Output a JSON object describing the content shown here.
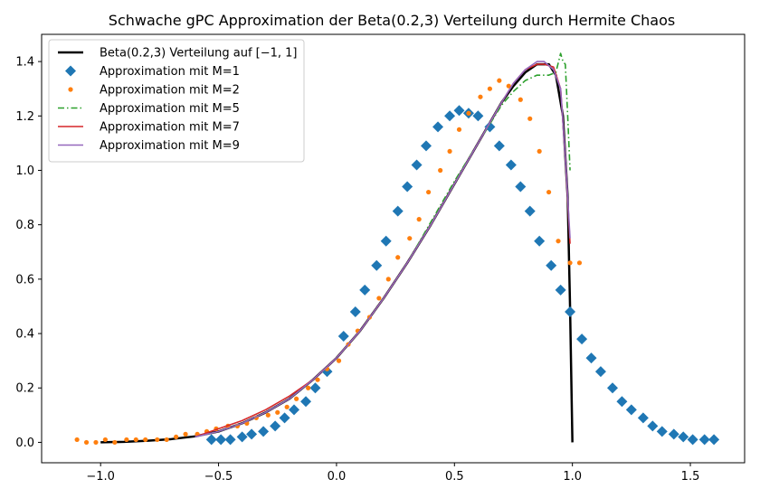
{
  "chart_data": {
    "type": "line",
    "title": "Schwache gPC Approximation der Beta(0.2,3) Verteilung durch Hermite Chaos",
    "xlim": [
      -1.25,
      1.73
    ],
    "ylim": [
      -0.075,
      1.5
    ],
    "xticks": [
      -1.0,
      -0.5,
      0.0,
      0.5,
      1.0,
      1.5
    ],
    "xtick_labels": [
      "−1.0",
      "−0.5",
      "0.0",
      "0.5",
      "1.0",
      "1.5"
    ],
    "yticks": [
      0.0,
      0.2,
      0.4,
      0.6,
      0.8,
      1.0,
      1.2,
      1.4
    ],
    "ytick_labels": [
      "0.0",
      "0.2",
      "0.4",
      "0.6",
      "0.8",
      "1.0",
      "1.2",
      "1.4"
    ],
    "grid": false,
    "legend_position": "upper-left",
    "series": [
      {
        "name": "Beta(0.2,3) Verteilung auf [−1, 1]",
        "style": "line",
        "color": "#000000",
        "width": 2.5,
        "dash": "",
        "x": [
          -1.0,
          -0.9,
          -0.8,
          -0.7,
          -0.6,
          -0.5,
          -0.4,
          -0.3,
          -0.2,
          -0.1,
          0.0,
          0.1,
          0.2,
          0.3,
          0.4,
          0.5,
          0.6,
          0.7,
          0.75,
          0.8,
          0.85,
          0.9,
          0.93,
          0.96,
          0.98,
          0.99,
          1.0
        ],
        "y": [
          0.0,
          0.002,
          0.006,
          0.012,
          0.022,
          0.04,
          0.07,
          0.11,
          0.16,
          0.23,
          0.31,
          0.41,
          0.53,
          0.66,
          0.8,
          0.95,
          1.1,
          1.25,
          1.31,
          1.36,
          1.39,
          1.39,
          1.35,
          1.2,
          0.9,
          0.5,
          0.0
        ]
      },
      {
        "name": "Approximation mit M=1",
        "style": "marker",
        "marker": "diamond",
        "color": "#1f77b4",
        "size": 6,
        "x": [
          -0.53,
          -0.49,
          -0.45,
          -0.4,
          -0.36,
          -0.31,
          -0.26,
          -0.22,
          -0.18,
          -0.13,
          -0.09,
          -0.04,
          0.03,
          0.08,
          0.12,
          0.17,
          0.21,
          0.26,
          0.3,
          0.34,
          0.38,
          0.43,
          0.48,
          0.52,
          0.56,
          0.6,
          0.65,
          0.69,
          0.74,
          0.78,
          0.82,
          0.86,
          0.91,
          0.95,
          0.99,
          1.04,
          1.08,
          1.12,
          1.17,
          1.21,
          1.25,
          1.3,
          1.34,
          1.38,
          1.43,
          1.47,
          1.51,
          1.56,
          1.6
        ],
        "y": [
          0.01,
          0.01,
          0.01,
          0.02,
          0.03,
          0.04,
          0.06,
          0.09,
          0.12,
          0.15,
          0.2,
          0.26,
          0.39,
          0.48,
          0.56,
          0.65,
          0.74,
          0.85,
          0.94,
          1.02,
          1.09,
          1.16,
          1.2,
          1.22,
          1.21,
          1.2,
          1.16,
          1.09,
          1.02,
          0.94,
          0.85,
          0.74,
          0.65,
          0.56,
          0.48,
          0.38,
          0.31,
          0.26,
          0.2,
          0.15,
          0.12,
          0.09,
          0.06,
          0.04,
          0.03,
          0.02,
          0.01,
          0.01,
          0.01
        ]
      },
      {
        "name": "Approximation mit M=2",
        "style": "marker",
        "marker": "dot",
        "color": "#ff7f0e",
        "size": 2.6,
        "x": [
          -1.1,
          -1.06,
          -1.02,
          -0.98,
          -0.94,
          -0.89,
          -0.85,
          -0.81,
          -0.76,
          -0.72,
          -0.68,
          -0.64,
          -0.59,
          -0.55,
          -0.51,
          -0.46,
          -0.42,
          -0.38,
          -0.34,
          -0.29,
          -0.25,
          -0.21,
          -0.17,
          -0.12,
          -0.08,
          -0.04,
          0.01,
          0.05,
          0.09,
          0.14,
          0.18,
          0.22,
          0.26,
          0.31,
          0.35,
          0.39,
          0.44,
          0.48,
          0.52,
          0.56,
          0.61,
          0.65,
          0.69,
          0.73,
          0.78,
          0.82,
          0.86,
          0.9,
          0.94,
          0.99,
          1.03
        ],
        "y": [
          0.01,
          0.0,
          0.0,
          0.01,
          0.0,
          0.01,
          0.01,
          0.01,
          0.01,
          0.01,
          0.02,
          0.03,
          0.03,
          0.04,
          0.05,
          0.06,
          0.06,
          0.07,
          0.09,
          0.1,
          0.11,
          0.13,
          0.16,
          0.2,
          0.23,
          0.27,
          0.3,
          0.36,
          0.41,
          0.46,
          0.53,
          0.6,
          0.68,
          0.75,
          0.82,
          0.92,
          1.0,
          1.07,
          1.15,
          1.21,
          1.27,
          1.3,
          1.33,
          1.31,
          1.26,
          1.19,
          1.07,
          0.92,
          0.74,
          0.66,
          0.66
        ]
      },
      {
        "name": "Approximation mit M=5",
        "style": "line",
        "color": "#2ca02c",
        "width": 1.6,
        "dash": "7,3,1.5,3",
        "x": [
          -0.6,
          -0.5,
          -0.4,
          -0.3,
          -0.2,
          -0.1,
          0.0,
          0.1,
          0.2,
          0.3,
          0.4,
          0.5,
          0.6,
          0.7,
          0.75,
          0.8,
          0.85,
          0.9,
          0.93,
          0.95,
          0.96,
          0.97,
          0.98,
          0.99
        ],
        "y": [
          0.02,
          0.04,
          0.07,
          0.11,
          0.16,
          0.23,
          0.31,
          0.41,
          0.53,
          0.66,
          0.81,
          0.96,
          1.1,
          1.24,
          1.29,
          1.33,
          1.35,
          1.35,
          1.36,
          1.43,
          1.4,
          1.39,
          1.2,
          1.0
        ]
      },
      {
        "name": "Approximation mit M=7",
        "style": "line",
        "color": "#d62728",
        "width": 1.6,
        "dash": "",
        "x": [
          -0.6,
          -0.5,
          -0.4,
          -0.3,
          -0.2,
          -0.1,
          0.0,
          0.1,
          0.2,
          0.3,
          0.4,
          0.5,
          0.6,
          0.7,
          0.75,
          0.8,
          0.85,
          0.88,
          0.92,
          0.95,
          0.97,
          0.99
        ],
        "y": [
          0.02,
          0.05,
          0.08,
          0.12,
          0.17,
          0.23,
          0.31,
          0.41,
          0.53,
          0.66,
          0.8,
          0.95,
          1.1,
          1.25,
          1.32,
          1.37,
          1.39,
          1.39,
          1.38,
          1.3,
          1.05,
          0.73
        ]
      },
      {
        "name": "Approximation mit M=9",
        "style": "line",
        "color": "#9467bd",
        "width": 1.6,
        "dash": "",
        "x": [
          -0.6,
          -0.5,
          -0.4,
          -0.3,
          -0.2,
          -0.1,
          0.0,
          0.1,
          0.2,
          0.3,
          0.4,
          0.5,
          0.6,
          0.7,
          0.75,
          0.8,
          0.85,
          0.88,
          0.92,
          0.95,
          0.97,
          0.99
        ],
        "y": [
          0.02,
          0.04,
          0.07,
          0.11,
          0.16,
          0.23,
          0.31,
          0.41,
          0.53,
          0.66,
          0.8,
          0.95,
          1.1,
          1.25,
          1.32,
          1.37,
          1.4,
          1.4,
          1.37,
          1.3,
          1.05,
          0.75
        ]
      }
    ]
  }
}
